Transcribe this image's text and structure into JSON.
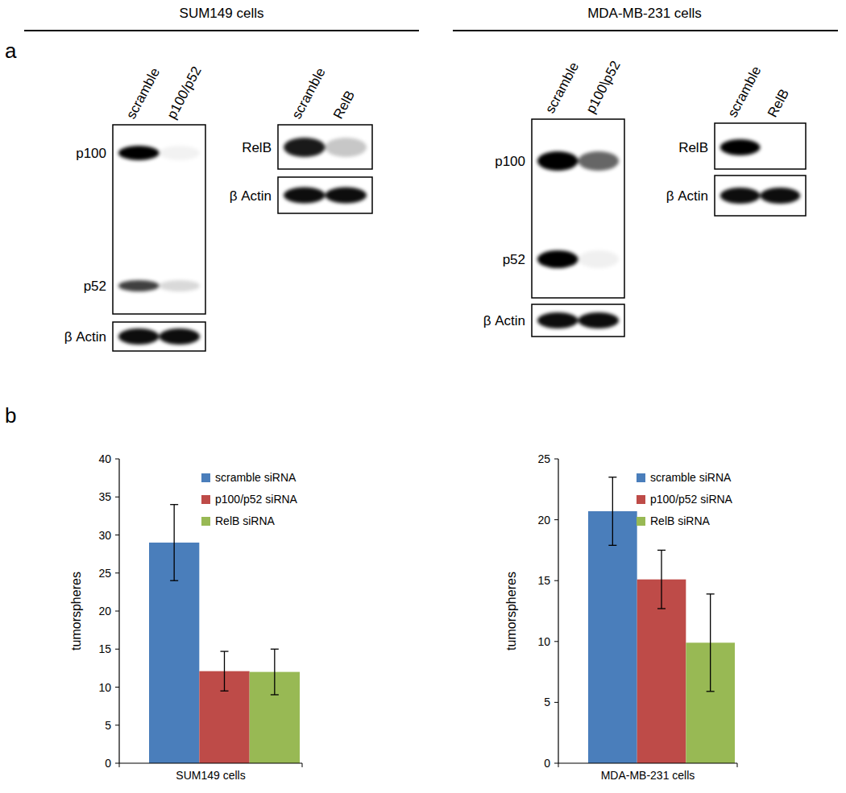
{
  "panel_labels": [
    "a",
    "b"
  ],
  "blots": [
    {
      "title": "SUM149 cells",
      "groups": [
        {
          "lanes": [
            "scramble",
            "p100/p52"
          ],
          "rows": [
            [
              "p100",
              "p52"
            ],
            [
              "β Actin"
            ]
          ]
        },
        {
          "lanes": [
            "scramble",
            "RelB"
          ],
          "rows": [
            [
              "RelB"
            ],
            [
              "β Actin"
            ]
          ]
        }
      ]
    },
    {
      "title": "MDA-MB-231 cells",
      "groups": [
        {
          "lanes": [
            "scramble",
            "p100\\p52"
          ],
          "rows": [
            [
              "p100",
              "p52"
            ],
            [
              "β Actin"
            ]
          ]
        },
        {
          "lanes": [
            "scramble",
            "RelB"
          ],
          "rows": [
            [
              "RelB"
            ],
            [
              "β Actin"
            ]
          ]
        }
      ]
    }
  ],
  "chart_data": [
    {
      "type": "bar",
      "y_label": "tumorspheres",
      "categories": [
        "SUM149 cells"
      ],
      "series": [
        {
          "name": "scramble siRNA",
          "color": "#4a7ebb",
          "values": [
            29
          ],
          "errors": [
            5
          ]
        },
        {
          "name": "p100/p52 siRNA",
          "color": "#be4b48",
          "values": [
            12.1
          ],
          "errors": [
            2.6
          ]
        },
        {
          "name": "RelB siRNA",
          "color": "#98b954",
          "values": [
            12
          ],
          "errors": [
            3
          ]
        }
      ],
      "ylim": [
        0,
        40
      ],
      "yticks": [
        0,
        5,
        10,
        15,
        20,
        25,
        30,
        35,
        40
      ],
      "grid": false,
      "legend": "upper right"
    },
    {
      "type": "bar",
      "y_label": "tumorspheres",
      "categories": [
        "MDA-MB-231 cells"
      ],
      "series": [
        {
          "name": "scramble siRNA",
          "color": "#4a7ebb",
          "values": [
            20.7
          ],
          "errors": [
            2.8
          ]
        },
        {
          "name": "p100/p52 siRNA",
          "color": "#be4b48",
          "values": [
            15.1
          ],
          "errors": [
            2.4
          ]
        },
        {
          "name": "RelB siRNA",
          "color": "#98b954",
          "values": [
            9.9
          ],
          "errors": [
            4
          ]
        }
      ],
      "ylim": [
        0,
        25
      ],
      "yticks": [
        0,
        5,
        10,
        15,
        20,
        25
      ],
      "grid": false,
      "legend": "upper right"
    }
  ]
}
